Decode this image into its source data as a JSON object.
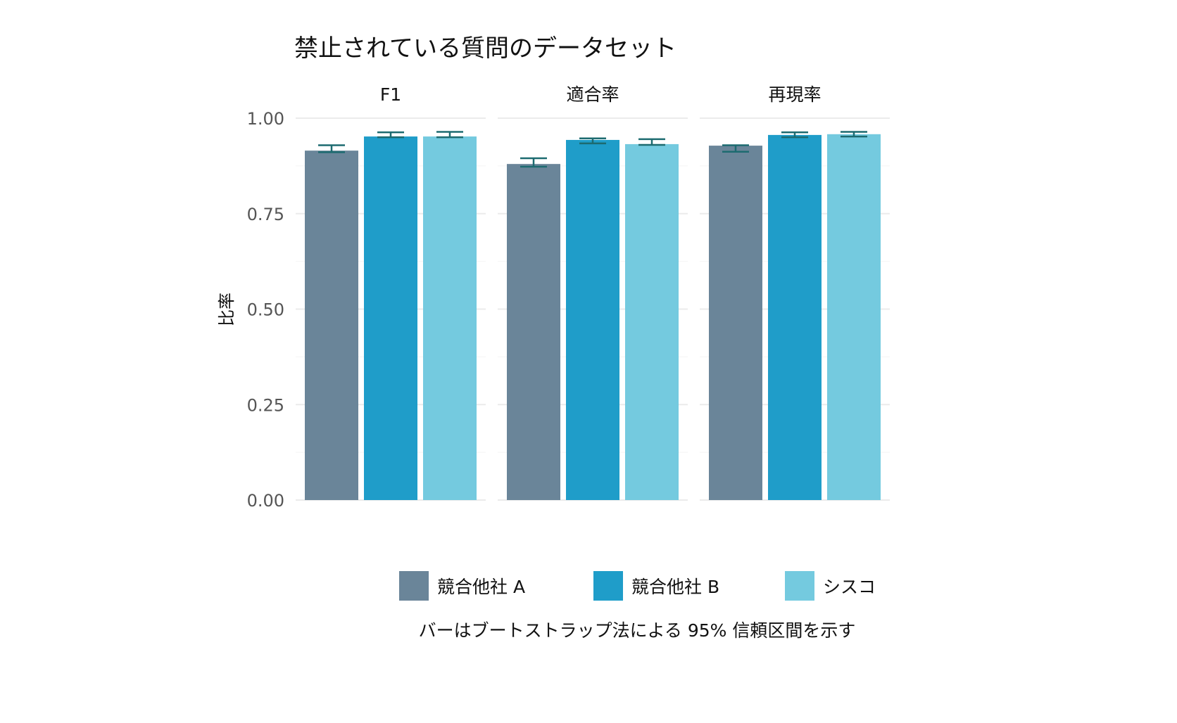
{
  "chart_data": {
    "type": "bar",
    "title": "禁止されている質問のデータセット",
    "ylabel": "比率",
    "xlabel": "",
    "ylim": [
      0,
      1
    ],
    "yticks": [
      "0.00",
      "0.25",
      "0.50",
      "0.75",
      "1.00"
    ],
    "ytick_values": [
      0,
      0.25,
      0.5,
      0.75,
      1.0
    ],
    "grid": true,
    "facets": [
      "F1",
      "適合率",
      "再現率"
    ],
    "series": [
      {
        "name": "競合他社 A",
        "color": "#6a8599",
        "values": [
          0.915,
          0.88,
          0.928
        ],
        "ci_low": [
          0.911,
          0.873,
          0.912
        ],
        "ci_high": [
          0.929,
          0.895,
          0.929
        ]
      },
      {
        "name": "競合他社 B",
        "color": "#1f9dc9",
        "values": [
          0.952,
          0.943,
          0.956
        ],
        "ci_low": [
          0.95,
          0.934,
          0.95
        ],
        "ci_high": [
          0.963,
          0.947,
          0.963
        ]
      },
      {
        "name": "シスコ",
        "color": "#74cadf",
        "values": [
          0.952,
          0.932,
          0.958
        ],
        "ci_low": [
          0.95,
          0.93,
          0.952
        ],
        "ci_high": [
          0.964,
          0.945,
          0.964
        ]
      }
    ],
    "errorbar_color": "#1d6b70",
    "legend_position": "bottom",
    "caption": "バーはブートストラップ法による 95% 信頼区間を示す"
  }
}
